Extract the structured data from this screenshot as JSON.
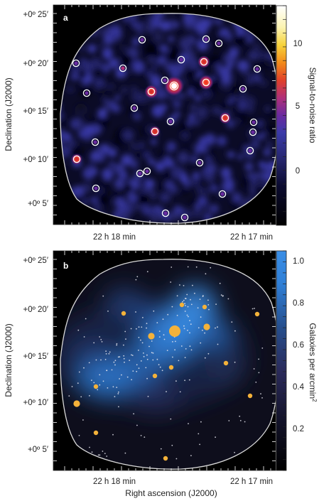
{
  "chart_data": [
    {
      "panel": "a",
      "type": "heatmap",
      "ylabel": "Declination (J2000)",
      "y_ticks": [
        "+0º 25′",
        "+0º 20′",
        "+0º 15′",
        "+0º 10′",
        "+0º 5′"
      ],
      "x_ticks": [
        "22 h 18 min",
        "22 h 17 min"
      ],
      "colorbar": {
        "label": "Signal-to-noise ratio",
        "ticks": [
          "10",
          "5",
          "0"
        ],
        "range": [
          -3,
          13
        ]
      },
      "detections": [
        {
          "x": 245,
          "y": 121,
          "snr": 12
        },
        {
          "x": 290,
          "y": 116,
          "snr": 8
        },
        {
          "x": 213,
          "y": 129,
          "snr": 7
        },
        {
          "x": 287,
          "y": 87,
          "snr": 6
        },
        {
          "x": 317,
          "y": 166,
          "snr": 5.5
        },
        {
          "x": 218,
          "y": 185,
          "snr": 5
        },
        {
          "x": 173,
          "y": 96,
          "snr": 4.5
        },
        {
          "x": 107,
          "y": 89,
          "snr": 3
        },
        {
          "x": 200,
          "y": 56,
          "snr": 3
        },
        {
          "x": 290,
          "y": 55,
          "snr": 3
        },
        {
          "x": 308,
          "y": 61,
          "snr": 3
        },
        {
          "x": 255,
          "y": 84,
          "snr": 3.5
        },
        {
          "x": 362,
          "y": 97,
          "snr": 3.5
        },
        {
          "x": 122,
          "y": 131,
          "snr": 3
        },
        {
          "x": 232,
          "y": 113,
          "snr": 3
        },
        {
          "x": 342,
          "y": 125,
          "snr": 3
        },
        {
          "x": 189,
          "y": 152,
          "snr": 3
        },
        {
          "x": 240,
          "y": 171,
          "snr": 3
        },
        {
          "x": 357,
          "y": 172,
          "snr": 3
        },
        {
          "x": 356,
          "y": 186,
          "snr": 3
        },
        {
          "x": 134,
          "y": 200,
          "snr": 3.5
        },
        {
          "x": 352,
          "y": 212,
          "snr": 3
        },
        {
          "x": 108,
          "y": 224,
          "snr": 5
        },
        {
          "x": 281,
          "y": 229,
          "snr": 3
        },
        {
          "x": 207,
          "y": 241,
          "snr": 3
        },
        {
          "x": 197,
          "y": 244,
          "snr": 3
        },
        {
          "x": 135,
          "y": 265,
          "snr": 3
        },
        {
          "x": 313,
          "y": 273,
          "snr": 3
        },
        {
          "x": 233,
          "y": 300,
          "snr": 3
        },
        {
          "x": 260,
          "y": 306,
          "snr": 3
        }
      ]
    },
    {
      "panel": "b",
      "type": "heatmap",
      "xlabel": "Right ascension (J2000)",
      "ylabel": "Declination (J2000)",
      "y_ticks": [
        "+0º 25′",
        "+0º 20′",
        "+0º 15′",
        "+0º 10′",
        "+0º 5′"
      ],
      "x_ticks": [
        "22 h 18 min",
        "22 h 17 min"
      ],
      "colorbar": {
        "label": "Galaxies per arcmin",
        "label_sup": "2",
        "ticks": [
          "1.0",
          "0.8",
          "0.6",
          "0.4",
          "0.2"
        ],
        "range": [
          0.05,
          1.05
        ]
      },
      "bright_galaxies": [
        {
          "x": 246,
          "y": 466,
          "size": 3
        },
        {
          "x": 291,
          "y": 460,
          "size": 2
        },
        {
          "x": 213,
          "y": 473,
          "size": 2
        },
        {
          "x": 256,
          "y": 429,
          "size": 1
        },
        {
          "x": 288,
          "y": 432,
          "size": 1
        },
        {
          "x": 174,
          "y": 441,
          "size": 1
        },
        {
          "x": 362,
          "y": 442,
          "size": 1
        },
        {
          "x": 241,
          "y": 517,
          "size": 1
        },
        {
          "x": 218,
          "y": 529,
          "size": 1
        },
        {
          "x": 318,
          "y": 511,
          "size": 1
        },
        {
          "x": 135,
          "y": 544,
          "size": 1
        },
        {
          "x": 108,
          "y": 568,
          "size": 2
        },
        {
          "x": 352,
          "y": 557,
          "size": 1
        },
        {
          "x": 135,
          "y": 609,
          "size": 1
        },
        {
          "x": 233,
          "y": 645,
          "size": 1
        }
      ]
    }
  ],
  "panels": [
    {
      "letter": "a",
      "ylabel": "Declination (J2000)",
      "y_ticks": [
        "+0º 25′",
        "+0º 20′",
        "+0º 15′",
        "+0º 10′",
        "+0º 5′"
      ],
      "x_ticks": [
        "22 h 18 min",
        "22 h 17 min"
      ],
      "cb_label": "Signal-to-noise ratio",
      "cb_ticks": [
        "10",
        "5",
        "0"
      ]
    },
    {
      "letter": "b",
      "ylabel": "Declination (J2000)",
      "y_ticks": [
        "+0º 25′",
        "+0º 20′",
        "+0º 15′",
        "+0º 10′",
        "+0º 5′"
      ],
      "x_ticks": [
        "22 h 18 min",
        "22 h 17 min"
      ],
      "cb_label": "Galaxies per arcmin",
      "cb_label_sup": "2",
      "cb_ticks": [
        "1.0",
        "0.8",
        "0.6",
        "0.4",
        "0.2"
      ]
    }
  ],
  "xlabel": "Right ascension (J2000)",
  "colors": {
    "background": "#0a0a12",
    "boundary": "#d8d8d8",
    "snr_blue": "#2c2c7a",
    "density_blue": "#2f7fd6",
    "galaxy_gold": "#f4b23a"
  }
}
